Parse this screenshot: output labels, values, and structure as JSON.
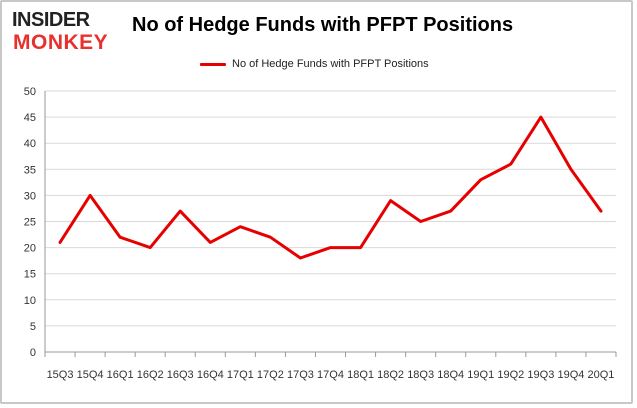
{
  "logo": {
    "line1": "INSIDER",
    "line2": "MONKEY"
  },
  "colors": {
    "series": "#e60000",
    "logo_dark": "#222222",
    "logo_red": "#e8312f",
    "grid": "#d9d9d9",
    "axis": "#999999"
  },
  "chart_data": {
    "type": "line",
    "title": "No of Hedge Funds with PFPT Positions",
    "legend_position": "top-center",
    "grid": true,
    "x": [
      "15Q3",
      "15Q4",
      "16Q1",
      "16Q2",
      "16Q3",
      "16Q4",
      "17Q1",
      "17Q2",
      "17Q3",
      "17Q4",
      "18Q1",
      "18Q2",
      "18Q3",
      "18Q4",
      "19Q1",
      "19Q2",
      "19Q3",
      "19Q4",
      "20Q1"
    ],
    "series": [
      {
        "name": "No of Hedge Funds with PFPT Positions",
        "values": [
          21,
          30,
          22,
          20,
          27,
          21,
          24,
          22,
          18,
          20,
          20,
          29,
          25,
          27,
          33,
          36,
          45,
          35,
          27
        ]
      }
    ],
    "ylim": [
      0,
      50
    ],
    "yticks": [
      0,
      5,
      10,
      15,
      20,
      25,
      30,
      35,
      40,
      45,
      50
    ]
  }
}
